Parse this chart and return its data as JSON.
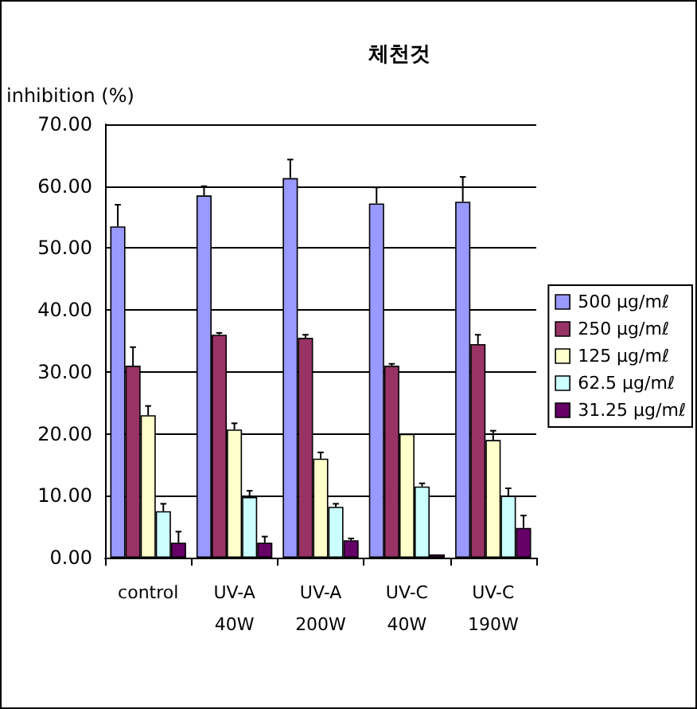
{
  "chart_data": {
    "type": "bar",
    "title": "체천것",
    "ylabel": "inhibition (%)",
    "categories": [
      "control",
      "UV-A\n40W",
      "UV-A\n200W",
      "UV-C\n40W",
      "UV-C\n190W"
    ],
    "series": [
      {
        "name": "500 μg/mℓ",
        "color": "#9999ff",
        "values": [
          53.5,
          58.5,
          61.3,
          57.2,
          57.5
        ],
        "errors": [
          [
            53.5,
            57
          ],
          [
            58.5,
            60
          ],
          [
            61.3,
            64.3
          ],
          [
            57.2,
            59.8
          ],
          [
            57.5,
            61.5
          ]
        ]
      },
      {
        "name": "250 μg/mℓ",
        "color": "#993366",
        "values": [
          31,
          36,
          35.5,
          31,
          34.5
        ],
        "errors": [
          [
            31,
            34
          ],
          [
            36,
            36.3
          ],
          [
            35.5,
            36
          ],
          [
            31,
            31.3
          ],
          [
            34.5,
            36
          ]
        ]
      },
      {
        "name": "125 μg/mℓ",
        "color": "#ffffcc",
        "values": [
          23,
          20.7,
          16,
          20,
          19
        ],
        "errors": [
          [
            23,
            24.5
          ],
          [
            20.7,
            21.7
          ],
          [
            16,
            17
          ],
          null,
          [
            19,
            20.5
          ]
        ]
      },
      {
        "name": "62.5 μg/mℓ",
        "color": "#ccffff",
        "values": [
          7.5,
          9.8,
          8.2,
          11.5,
          10
        ],
        "errors": [
          [
            7.5,
            8.7
          ],
          [
            9.8,
            10.8
          ],
          [
            8.2,
            8.7
          ],
          [
            11.5,
            12
          ],
          [
            10,
            11.2
          ]
        ]
      },
      {
        "name": "31.25 μg/mℓ",
        "color": "#660066",
        "values": [
          2.4,
          2.4,
          2.8,
          0.5,
          4.8
        ],
        "errors": [
          [
            2.4,
            4.2
          ],
          [
            2.4,
            3.4
          ],
          [
            2.8,
            3.1
          ],
          null,
          [
            4.8,
            6.8
          ]
        ]
      }
    ],
    "ylim": [
      0,
      70
    ],
    "yticks": [
      {
        "value": 0,
        "label": "0.00"
      },
      {
        "value": 10,
        "label": "10.00"
      },
      {
        "value": 20,
        "label": "20.00"
      },
      {
        "value": 30,
        "label": "30.00"
      },
      {
        "value": 40,
        "label": "40.00"
      },
      {
        "value": 50,
        "label": "50.00"
      },
      {
        "value": 60,
        "label": "60.00"
      },
      {
        "value": 70,
        "label": "70.00"
      }
    ],
    "grid": "y",
    "legend": "right"
  }
}
